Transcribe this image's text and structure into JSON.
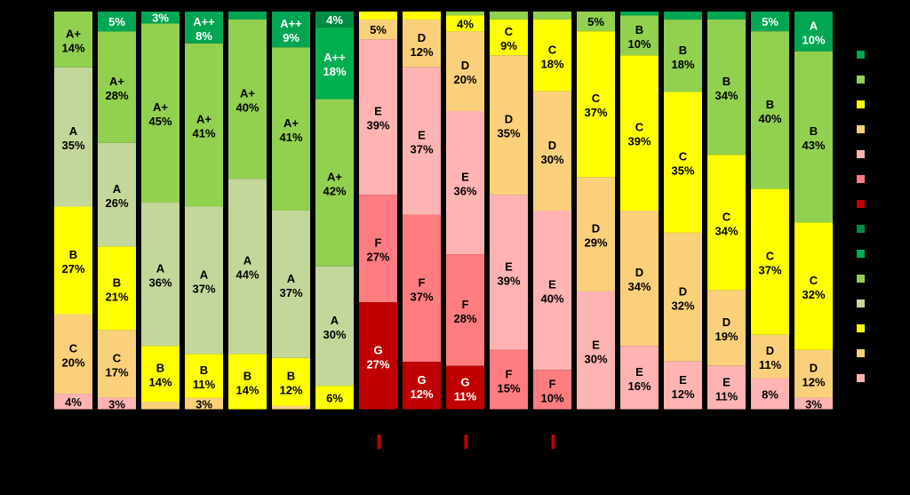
{
  "chart_data": {
    "type": "bar",
    "stacked": true,
    "normalized": true,
    "orientation": "vertical",
    "title": "",
    "xlabel": "",
    "ylabel": "",
    "ylim": [
      0,
      100
    ],
    "grid": false,
    "legend_position": "right",
    "class_colors": {
      "A++": "#00a651",
      "A+": "#92d050",
      "A": "#c4d79b",
      "B": "#92d050",
      "C": "#ffff00",
      "D": "#fad07a",
      "E": "#ffb3b3",
      "F": "#ff7c80",
      "G": "#c00000"
    },
    "legend_swatches": [
      "#00a651",
      "#92d050",
      "#ffff00",
      "#fad07a",
      "#ffb3b3",
      "#ff7c80",
      "#c00000",
      "#008c45",
      "#00b050",
      "#92d050",
      "#c4d79b",
      "#ffff00",
      "#fad07a",
      "#ffb3b3"
    ],
    "bars": [
      {
        "segments": [
          {
            "label": "A+",
            "value": 14,
            "color": "#92d050"
          },
          {
            "label": "A",
            "value": 35,
            "color": "#c4d79b"
          },
          {
            "label": "B",
            "value": 27,
            "color": "#ffff00"
          },
          {
            "label": "C",
            "value": 20,
            "color": "#fad07a"
          },
          {
            "label": "",
            "value": 4,
            "color": "#ffb3b3"
          }
        ]
      },
      {
        "segments": [
          {
            "label": "",
            "value": 5,
            "color": "#00a651"
          },
          {
            "label": "A+",
            "value": 28,
            "color": "#92d050"
          },
          {
            "label": "A",
            "value": 26,
            "color": "#c4d79b"
          },
          {
            "label": "B",
            "value": 21,
            "color": "#ffff00"
          },
          {
            "label": "C",
            "value": 17,
            "color": "#fad07a"
          },
          {
            "label": "",
            "value": 3,
            "color": "#ffb3b3"
          }
        ]
      },
      {
        "segments": [
          {
            "label": "",
            "value": 3,
            "color": "#00a651"
          },
          {
            "label": "A+",
            "value": 45,
            "color": "#92d050"
          },
          {
            "label": "A",
            "value": 36,
            "color": "#c4d79b"
          },
          {
            "label": "B",
            "value": 14,
            "color": "#ffff00"
          },
          {
            "label": "",
            "value": 2,
            "color": "#fad07a"
          }
        ]
      },
      {
        "segments": [
          {
            "label": "A++",
            "value": 8,
            "color": "#00a651"
          },
          {
            "label": "A+",
            "value": 41,
            "color": "#92d050"
          },
          {
            "label": "A",
            "value": 37,
            "color": "#c4d79b"
          },
          {
            "label": "B",
            "value": 11,
            "color": "#ffff00"
          },
          {
            "label": "",
            "value": 3,
            "color": "#fad07a"
          }
        ]
      },
      {
        "segments": [
          {
            "label": "",
            "value": 2,
            "color": "#00a651"
          },
          {
            "label": "A+",
            "value": 40,
            "color": "#92d050"
          },
          {
            "label": "A",
            "value": 44,
            "color": "#c4d79b"
          },
          {
            "label": "B",
            "value": 14,
            "color": "#ffff00"
          }
        ]
      },
      {
        "segments": [
          {
            "label": "A++",
            "value": 9,
            "color": "#00a651"
          },
          {
            "label": "A+",
            "value": 41,
            "color": "#92d050"
          },
          {
            "label": "A",
            "value": 37,
            "color": "#c4d79b"
          },
          {
            "label": "B",
            "value": 12,
            "color": "#ffff00"
          },
          {
            "label": "",
            "value": 1,
            "color": "#fad07a"
          }
        ]
      },
      {
        "segments": [
          {
            "label": "",
            "value": 4,
            "color": "#008c45"
          },
          {
            "label": "A++",
            "value": 18,
            "color": "#00b050"
          },
          {
            "label": "A+",
            "value": 42,
            "color": "#92d050"
          },
          {
            "label": "A",
            "value": 30,
            "color": "#c4d79b"
          },
          {
            "label": "",
            "value": 6,
            "color": "#ffff00"
          }
        ]
      },
      {
        "segments": [
          {
            "label": "",
            "value": 2,
            "color": "#ffff00"
          },
          {
            "label": "",
            "value": 5,
            "color": "#fad07a"
          },
          {
            "label": "E",
            "value": 39,
            "color": "#ffb3b3"
          },
          {
            "label": "F",
            "value": 27,
            "color": "#ff7c80"
          },
          {
            "label": "G",
            "value": 27,
            "color": "#c00000"
          }
        ]
      },
      {
        "segments": [
          {
            "label": "",
            "value": 2,
            "color": "#ffff00"
          },
          {
            "label": "D",
            "value": 12,
            "color": "#fad07a"
          },
          {
            "label": "E",
            "value": 37,
            "color": "#ffb3b3"
          },
          {
            "label": "F",
            "value": 37,
            "color": "#ff7c80"
          },
          {
            "label": "G",
            "value": 12,
            "color": "#c00000"
          }
        ]
      },
      {
        "segments": [
          {
            "label": "",
            "value": 1,
            "color": "#92d050"
          },
          {
            "label": "",
            "value": 4,
            "color": "#ffff00"
          },
          {
            "label": "D",
            "value": 20,
            "color": "#fad07a"
          },
          {
            "label": "E",
            "value": 36,
            "color": "#ffb3b3"
          },
          {
            "label": "F",
            "value": 28,
            "color": "#ff7c80"
          },
          {
            "label": "G",
            "value": 11,
            "color": "#c00000"
          }
        ]
      },
      {
        "segments": [
          {
            "label": "",
            "value": 2,
            "color": "#92d050"
          },
          {
            "label": "C",
            "value": 9,
            "color": "#ffff00"
          },
          {
            "label": "D",
            "value": 35,
            "color": "#fad07a"
          },
          {
            "label": "E",
            "value": 39,
            "color": "#ffb3b3"
          },
          {
            "label": "F",
            "value": 15,
            "color": "#ff7c80"
          }
        ]
      },
      {
        "segments": [
          {
            "label": "",
            "value": 2,
            "color": "#92d050"
          },
          {
            "label": "C",
            "value": 18,
            "color": "#ffff00"
          },
          {
            "label": "D",
            "value": 30,
            "color": "#fad07a"
          },
          {
            "label": "E",
            "value": 40,
            "color": "#ffb3b3"
          },
          {
            "label": "F",
            "value": 10,
            "color": "#ff7c80"
          }
        ]
      },
      {
        "segments": [
          {
            "label": "",
            "value": 5,
            "color": "#92d050"
          },
          {
            "label": "C",
            "value": 37,
            "color": "#ffff00"
          },
          {
            "label": "D",
            "value": 29,
            "color": "#fad07a"
          },
          {
            "label": "E",
            "value": 30,
            "color": "#ffb3b3"
          }
        ]
      },
      {
        "segments": [
          {
            "label": "",
            "value": 1,
            "color": "#00a651"
          },
          {
            "label": "B",
            "value": 10,
            "color": "#92d050"
          },
          {
            "label": "C",
            "value": 39,
            "color": "#ffff00"
          },
          {
            "label": "D",
            "value": 34,
            "color": "#fad07a"
          },
          {
            "label": "E",
            "value": 16,
            "color": "#ffb3b3"
          }
        ]
      },
      {
        "segments": [
          {
            "label": "",
            "value": 2,
            "color": "#00a651"
          },
          {
            "label": "B",
            "value": 18,
            "color": "#92d050"
          },
          {
            "label": "C",
            "value": 35,
            "color": "#ffff00"
          },
          {
            "label": "D",
            "value": 32,
            "color": "#fad07a"
          },
          {
            "label": "E",
            "value": 12,
            "color": "#ffb3b3"
          }
        ]
      },
      {
        "segments": [
          {
            "label": "",
            "value": 2,
            "color": "#00a651"
          },
          {
            "label": "B",
            "value": 34,
            "color": "#92d050"
          },
          {
            "label": "C",
            "value": 34,
            "color": "#ffff00"
          },
          {
            "label": "D",
            "value": 19,
            "color": "#fad07a"
          },
          {
            "label": "E",
            "value": 11,
            "color": "#ffb3b3"
          }
        ]
      },
      {
        "segments": [
          {
            "label": "",
            "value": 5,
            "color": "#00a651"
          },
          {
            "label": "B",
            "value": 40,
            "color": "#92d050"
          },
          {
            "label": "C",
            "value": 37,
            "color": "#ffff00"
          },
          {
            "label": "D",
            "value": 11,
            "color": "#fad07a"
          },
          {
            "label": "",
            "value": 8,
            "color": "#ffb3b3"
          }
        ]
      },
      {
        "segments": [
          {
            "label": "A",
            "value": 10,
            "color": "#00a651"
          },
          {
            "label": "B",
            "value": 43,
            "color": "#92d050"
          },
          {
            "label": "C",
            "value": 32,
            "color": "#ffff00"
          },
          {
            "label": "D",
            "value": 12,
            "color": "#fad07a"
          },
          {
            "label": "",
            "value": 3,
            "color": "#ffb3b3"
          }
        ]
      }
    ],
    "markers_under_bars": [
      7,
      9,
      11
    ],
    "marker_color": "#c00000"
  }
}
